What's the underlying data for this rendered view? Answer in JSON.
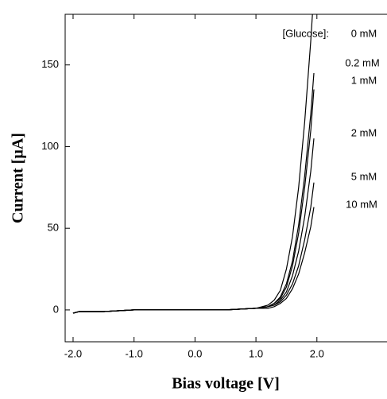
{
  "chart_data": {
    "type": "line",
    "x_label": "Bias voltage [V]",
    "y_label": "Current [µA]",
    "annotation": "[Glucose]:",
    "x": [
      -2.0,
      -1.9,
      -1.5,
      -1.0,
      -0.5,
      0.0,
      0.5,
      1.0,
      1.2,
      1.3,
      1.4,
      1.5,
      1.6,
      1.7,
      1.8,
      1.9,
      1.95
    ],
    "series": [
      {
        "name": "0 mM",
        "color": "#000000",
        "values": [
          -2,
          -1,
          -1,
          0,
          0,
          0,
          0,
          1,
          3,
          6,
          12,
          25,
          45,
          75,
          115,
          165,
          195
        ]
      },
      {
        "name": "0.2 mM",
        "color": "#000000",
        "values": [
          -2,
          -1,
          -1,
          0,
          0,
          0,
          0,
          1,
          2,
          4,
          8,
          16,
          30,
          52,
          82,
          120,
          145
        ]
      },
      {
        "name": "1 mM",
        "color": "#000000",
        "values": [
          -2,
          -1,
          -1,
          0,
          0,
          0,
          0,
          1,
          2,
          4,
          7,
          14,
          27,
          47,
          75,
          110,
          135
        ]
      },
      {
        "name": "2 mM",
        "color": "#000000",
        "values": [
          -2,
          -1,
          -1,
          0,
          0,
          0,
          0,
          1,
          2,
          3,
          6,
          11,
          21,
          36,
          57,
          85,
          105
        ]
      },
      {
        "name": "5 mM",
        "color": "#000000",
        "values": [
          -2,
          -1,
          -1,
          0,
          0,
          0,
          0,
          1,
          2,
          3,
          5,
          9,
          16,
          27,
          43,
          63,
          78
        ]
      },
      {
        "name": "10 mM",
        "color": "#000000",
        "values": [
          -2,
          -1,
          -1,
          0,
          0,
          0,
          0,
          1,
          1,
          2,
          4,
          7,
          13,
          22,
          35,
          51,
          63
        ]
      }
    ],
    "xlim": [
      -2.13,
      3.15
    ],
    "ylim": [
      -19.5,
      181
    ],
    "xticks": [
      {
        "value": -2,
        "label": "-2.0"
      },
      {
        "value": -1,
        "label": "-1.0"
      },
      {
        "value": 0,
        "label": "0.0"
      },
      {
        "value": 1,
        "label": "1.0"
      },
      {
        "value": 2,
        "label": "2.0"
      }
    ],
    "yticks": [
      0,
      50,
      100,
      150
    ],
    "grid": false
  }
}
